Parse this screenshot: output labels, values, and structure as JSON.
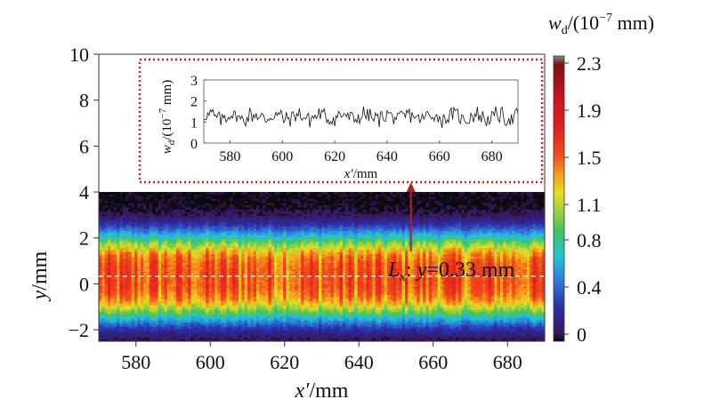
{
  "chart_data": [
    {
      "type": "heatmap",
      "xlabel_main": "x′",
      "xlabel_unit": "/mm",
      "ylabel_main": "y",
      "ylabel_unit": "/mm",
      "xlim": [
        570,
        690
      ],
      "ylim": [
        -2.5,
        10
      ],
      "data_ylim": [
        -2.5,
        4
      ],
      "xticks": [
        580,
        600,
        620,
        640,
        660,
        680
      ],
      "yticks": [
        -2,
        0,
        2,
        4,
        6,
        8,
        10
      ],
      "colorbar": {
        "label_var": "w",
        "label_sub": "d",
        "label_unit": "/(10",
        "label_exp": "−7",
        "label_tail": " mm)",
        "range": [
          0,
          2.3
        ],
        "ticks": [
          0,
          0.4,
          0.8,
          1.1,
          1.5,
          1.9,
          2.3
        ]
      },
      "profile_description": "ridge centered near y=0.33 mm, peak ~1.5–1.9, decaying to ~0 beyond |y-0.33|≈4 mm",
      "profile_ridge_y": 0.33,
      "profile_halfwidth": 1.6,
      "annotation": {
        "label_var": "L",
        "label_sub": "x",
        "label_rest": ": y=0.33 mm",
        "line_y": 0.33,
        "line_color": "#ffffff"
      },
      "arrow_color": "#b22222"
    },
    {
      "type": "line",
      "inset": true,
      "xlabel_main": "x′",
      "xlabel_unit": "/mm",
      "ylabel_var": "w",
      "ylabel_sub": "d",
      "ylabel_unit": "/(10",
      "ylabel_exp": "−7",
      "ylabel_tail": " mm)",
      "xlim": [
        570,
        690
      ],
      "ylim": [
        0,
        3
      ],
      "xticks": [
        580,
        600,
        620,
        640,
        660,
        680
      ],
      "yticks": [
        0,
        1,
        2,
        3
      ],
      "series_mean": 1.25,
      "series_amplitude": 0.35,
      "series_points": 240,
      "frame_color": "#cc2222"
    }
  ]
}
